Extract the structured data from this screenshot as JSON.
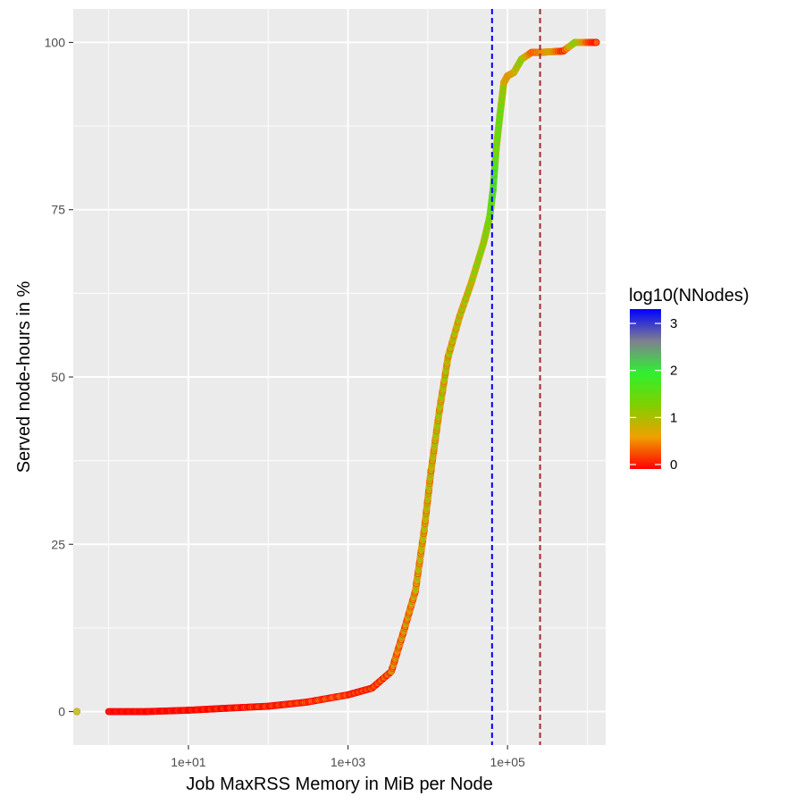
{
  "chart_data": {
    "type": "scatter",
    "title": "",
    "xlabel": "Job MaxRSS Memory in MiB per Node",
    "ylabel": "Served node-hours in %",
    "x_scale": "log10",
    "xlim": [
      0.36,
      1700000
    ],
    "ylim": [
      -5,
      105
    ],
    "x_ticks": [
      10,
      1000,
      100000
    ],
    "x_tick_labels": [
      "1e+01",
      "1e+03",
      "1e+05"
    ],
    "y_ticks": [
      0,
      25,
      50,
      75,
      100
    ],
    "y_tick_labels": [
      "0",
      "25",
      "50",
      "75",
      "100"
    ],
    "grid": true,
    "panel_background": "#ebebeb",
    "grid_color": "#ffffff",
    "color_scale": {
      "title": "log10(NNodes)",
      "min": 0,
      "max": 3.4,
      "breaks": [
        0,
        1,
        2,
        3
      ],
      "break_labels": [
        "0",
        "1",
        "2",
        "3"
      ],
      "colors": [
        "#ff0000",
        "#f0a000",
        "#80d000",
        "#30f030",
        "#808090",
        "#0000ff"
      ],
      "legend_position": "right"
    },
    "vlines": [
      {
        "x": 64000,
        "color": "#0000ff",
        "linetype": "dashed"
      },
      {
        "x": 256000,
        "color": "#a52a2a",
        "linetype": "dashed"
      }
    ],
    "series_curve": {
      "x": [
        0.4,
        1.0,
        3,
        10,
        30,
        100,
        300,
        1000,
        2000,
        3500,
        5000,
        7000,
        9000,
        11000,
        14000,
        18000,
        25000,
        35000,
        50000,
        60000,
        66000,
        72000,
        80000,
        90000,
        100000,
        120000,
        150000,
        200000,
        250000,
        350000,
        500000,
        700000,
        1000000,
        1300000
      ],
      "y": [
        0,
        0,
        0,
        0.2,
        0.5,
        0.8,
        1.4,
        2.5,
        3.5,
        6,
        12,
        18,
        27,
        36,
        45,
        53,
        59,
        64,
        70,
        74,
        78,
        84,
        89,
        94,
        95,
        95.5,
        97.5,
        98.5,
        98.5,
        98.6,
        98.7,
        100,
        100,
        100
      ],
      "lognodes": [
        1.0,
        0.0,
        0.0,
        0.1,
        0.2,
        0.3,
        0.4,
        0.5,
        0.6,
        0.8,
        0.9,
        1.0,
        1.1,
        1.1,
        1.2,
        1.2,
        1.3,
        1.4,
        1.6,
        1.9,
        2.4,
        1.8,
        1.9,
        1.5,
        1.3,
        1.4,
        1.9,
        1.0,
        1.1,
        1.4,
        0.7,
        1.9,
        1.0,
        0.6
      ]
    }
  }
}
